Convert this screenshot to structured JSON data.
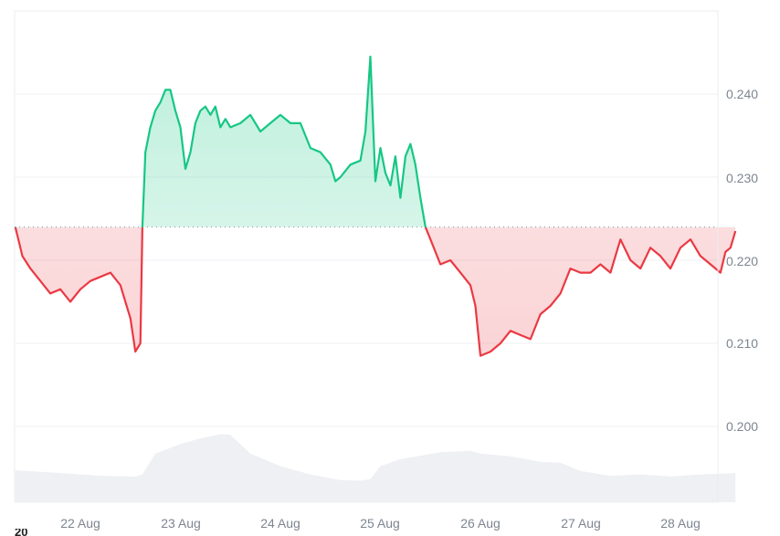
{
  "chart_data": {
    "type": "area",
    "title": "",
    "xlabel": "",
    "ylabel": "",
    "baseline": 0.224,
    "ylim": [
      0.194,
      0.2465
    ],
    "y_ticks": [
      "0.240",
      "0.230",
      "0.220",
      "0.210",
      "0.200"
    ],
    "y_tick_values": [
      0.24,
      0.23,
      0.22,
      0.21,
      0.2
    ],
    "x_ticks": [
      "22 Aug",
      "23 Aug",
      "24 Aug",
      "25 Aug",
      "26 Aug",
      "27 Aug",
      "28 Aug"
    ],
    "grid": true,
    "legend": null,
    "colors": {
      "up": "#16c784",
      "down": "#ea3943",
      "up_fill": "#d5f5e7",
      "down_fill": "#fbdde0",
      "volume": "#eef0f3",
      "grid": "#eff2f5",
      "baseline": "#a0a7b1",
      "axis_text": "#7d8590"
    },
    "series": [
      {
        "name": "Price",
        "x_day": [
          21.35,
          21.42,
          21.5,
          21.6,
          21.7,
          21.8,
          21.9,
          22.0,
          22.1,
          22.2,
          22.3,
          22.4,
          22.5,
          22.55,
          22.6,
          22.62,
          22.65,
          22.7,
          22.75,
          22.8,
          22.85,
          22.9,
          22.95,
          23.0,
          23.05,
          23.1,
          23.15,
          23.2,
          23.25,
          23.3,
          23.35,
          23.4,
          23.45,
          23.5,
          23.6,
          23.7,
          23.8,
          23.9,
          24.0,
          24.1,
          24.2,
          24.3,
          24.4,
          24.5,
          24.55,
          24.6,
          24.7,
          24.8,
          24.85,
          24.9,
          24.95,
          25.0,
          25.05,
          25.1,
          25.15,
          25.2,
          25.25,
          25.3,
          25.35,
          25.4,
          25.45,
          25.5,
          25.6,
          25.7,
          25.8,
          25.9,
          25.95,
          26.0,
          26.1,
          26.2,
          26.3,
          26.4,
          26.5,
          26.6,
          26.7,
          26.8,
          26.9,
          27.0,
          27.1,
          27.2,
          27.3,
          27.4,
          27.5,
          27.6,
          27.7,
          27.8,
          27.9,
          28.0,
          28.1,
          28.2,
          28.3,
          28.4,
          28.45,
          28.5,
          28.55
        ],
        "values": [
          0.224,
          0.2205,
          0.219,
          0.2175,
          0.216,
          0.2165,
          0.215,
          0.2165,
          0.2175,
          0.218,
          0.2185,
          0.217,
          0.213,
          0.209,
          0.21,
          0.224,
          0.233,
          0.236,
          0.238,
          0.239,
          0.2405,
          0.2405,
          0.238,
          0.236,
          0.231,
          0.233,
          0.2365,
          0.238,
          0.2385,
          0.2375,
          0.2385,
          0.236,
          0.237,
          0.236,
          0.2365,
          0.2375,
          0.2355,
          0.2365,
          0.2375,
          0.2365,
          0.2365,
          0.2335,
          0.233,
          0.2315,
          0.2295,
          0.23,
          0.2315,
          0.232,
          0.2355,
          0.2445,
          0.2295,
          0.2335,
          0.2305,
          0.229,
          0.2325,
          0.2275,
          0.2325,
          0.234,
          0.2315,
          0.2275,
          0.224,
          0.2225,
          0.2195,
          0.22,
          0.2185,
          0.217,
          0.2145,
          0.2085,
          0.209,
          0.21,
          0.2115,
          0.211,
          0.2105,
          0.2135,
          0.2145,
          0.216,
          0.219,
          0.2185,
          0.2185,
          0.2195,
          0.2185,
          0.2225,
          0.22,
          0.219,
          0.2215,
          0.2205,
          0.219,
          0.2215,
          0.2225,
          0.2205,
          0.2195,
          0.2185,
          0.221,
          0.2215,
          0.2235
        ]
      },
      {
        "name": "Volume",
        "x_day": [
          21.35,
          21.6,
          21.9,
          22.2,
          22.55,
          22.62,
          22.75,
          23.0,
          23.2,
          23.4,
          23.5,
          23.7,
          24.0,
          24.3,
          24.6,
          24.8,
          24.9,
          25.0,
          25.2,
          25.6,
          25.9,
          26.0,
          26.3,
          26.6,
          26.8,
          27.0,
          27.3,
          27.6,
          27.9,
          28.2,
          28.55
        ],
        "values": [
          0.46,
          0.44,
          0.41,
          0.38,
          0.37,
          0.4,
          0.7,
          0.84,
          0.92,
          0.98,
          0.97,
          0.7,
          0.52,
          0.4,
          0.32,
          0.31,
          0.33,
          0.52,
          0.62,
          0.72,
          0.74,
          0.7,
          0.66,
          0.58,
          0.57,
          0.45,
          0.38,
          0.4,
          0.37,
          0.4,
          0.42
        ]
      }
    ]
  },
  "axis": {
    "y_labels": [
      "0.240",
      "0.230",
      "0.220",
      "0.210",
      "0.200"
    ],
    "x_labels": [
      "22 Aug",
      "23 Aug",
      "24 Aug",
      "25 Aug",
      "26 Aug",
      "27 Aug",
      "28 Aug"
    ]
  },
  "stray_label": "20"
}
